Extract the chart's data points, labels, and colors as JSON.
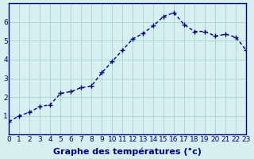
{
  "x": [
    0,
    1,
    2,
    3,
    4,
    5,
    6,
    7,
    8,
    9,
    10,
    11,
    12,
    13,
    14,
    15,
    16,
    17,
    18,
    19,
    20,
    21,
    22,
    23
  ],
  "y": [
    0.7,
    1.0,
    1.2,
    1.5,
    1.6,
    2.2,
    2.3,
    2.5,
    2.6,
    3.3,
    3.9,
    4.5,
    5.1,
    5.4,
    5.8,
    6.3,
    6.5,
    5.85,
    5.5,
    5.5,
    5.25,
    5.35,
    5.2,
    4.5
  ],
  "line_color": "#00008B",
  "marker": "+",
  "marker_size": 4,
  "line_width": 1.0,
  "background_color": "#d6f0f0",
  "grid_color": "#a0c8c8",
  "xlabel": "Graphe des températures (°c)",
  "xlabel_color": "#00008B",
  "xlabel_fontsize": 8,
  "tick_color": "#00008B",
  "tick_fontsize": 6.5,
  "ylim": [
    0,
    7
  ],
  "xlim": [
    0,
    23
  ],
  "yticks": [
    1,
    2,
    3,
    4,
    5,
    6
  ],
  "xticks": [
    0,
    1,
    2,
    3,
    4,
    5,
    6,
    7,
    8,
    9,
    10,
    11,
    12,
    13,
    14,
    15,
    16,
    17,
    18,
    19,
    20,
    21,
    22,
    23
  ]
}
